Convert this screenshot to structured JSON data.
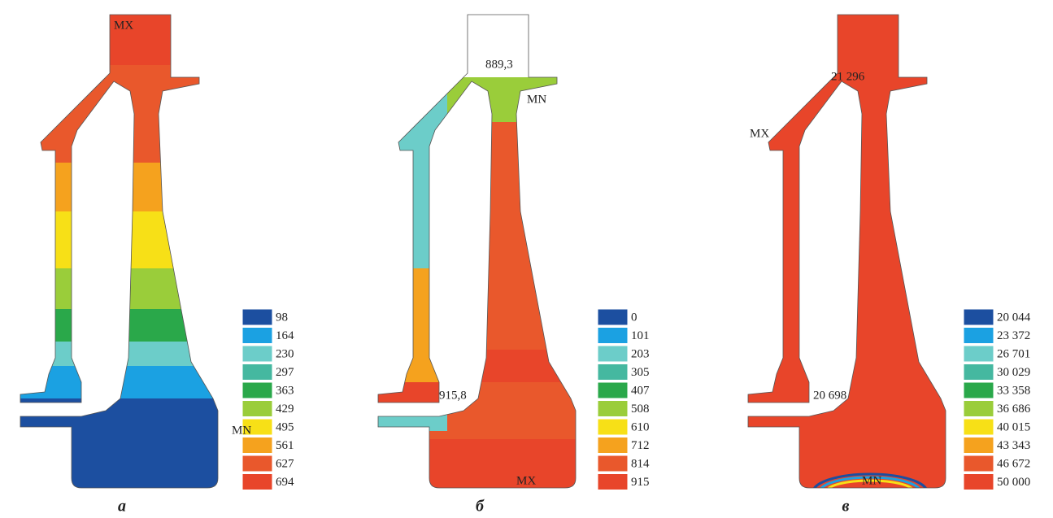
{
  "colors": [
    "#1c4fa0",
    "#1ba1e2",
    "#6ccdc9",
    "#45b8a0",
    "#2aa84a",
    "#9acd3a",
    "#f7e017",
    "#f5a21e",
    "#e9582c",
    "#e8452a"
  ],
  "panels": [
    {
      "caption": "а",
      "legend": [
        "98",
        "164",
        "230",
        "297",
        "363",
        "429",
        "495",
        "561",
        "627",
        "694"
      ],
      "annotations": [
        {
          "text": "MX"
        },
        {
          "text": "MN"
        }
      ]
    },
    {
      "caption": "б",
      "legend": [
        "0",
        "101",
        "203",
        "305",
        "407",
        "508",
        "610",
        "712",
        "814",
        "915"
      ],
      "annotations": [
        {
          "text": "889,3"
        },
        {
          "text": "MN"
        },
        {
          "text": "915,8"
        },
        {
          "text": "MX"
        }
      ]
    },
    {
      "caption": "в",
      "legend": [
        "20 044",
        "23 372",
        "26 701",
        "30 029",
        "33 358",
        "36 686",
        "40 015",
        "43 343",
        "46 672",
        "50 000"
      ],
      "annotations": [
        {
          "text": "21 296"
        },
        {
          "text": "MX"
        },
        {
          "text": "20 698"
        },
        {
          "text": "MN"
        }
      ]
    }
  ]
}
